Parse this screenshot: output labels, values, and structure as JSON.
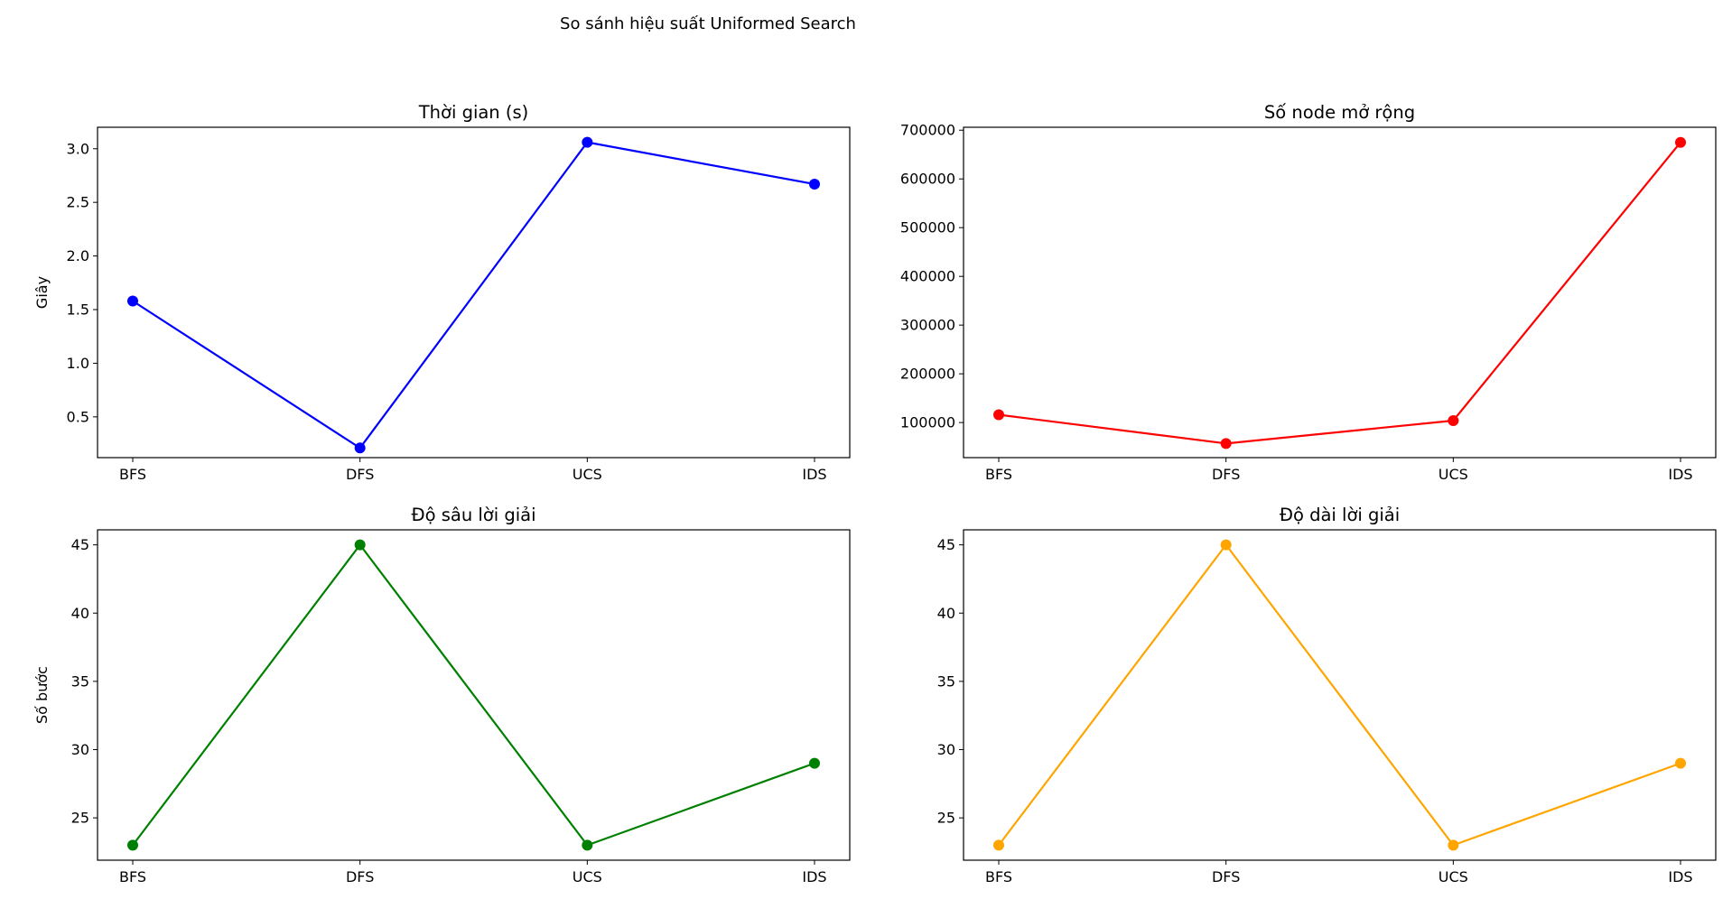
{
  "figure": {
    "suptitle": "So sánh hiệu suất Uniformed Search"
  },
  "chart_data": [
    {
      "type": "line",
      "title": "Thời gian (s)",
      "xlabel": "",
      "ylabel": "Giây",
      "categories": [
        "BFS",
        "DFS",
        "UCS",
        "IDS"
      ],
      "series": [
        {
          "values": [
            1.58,
            0.21,
            3.06,
            2.67
          ],
          "color": "#0000ff"
        }
      ],
      "ylim": [
        0.12,
        3.2
      ],
      "yticks": [
        0.5,
        1.0,
        1.5,
        2.0,
        2.5,
        3.0
      ],
      "ytick_labels": [
        "0.5",
        "1.0",
        "1.5",
        "2.0",
        "2.5",
        "3.0"
      ],
      "grid": false,
      "marker": "circle"
    },
    {
      "type": "line",
      "title": "Số node mở rộng",
      "xlabel": "",
      "ylabel": "",
      "categories": [
        "BFS",
        "DFS",
        "UCS",
        "IDS"
      ],
      "series": [
        {
          "values": [
            116000,
            57000,
            104000,
            675000
          ],
          "color": "#ff0000"
        }
      ],
      "ylim": [
        28000,
        706000
      ],
      "yticks": [
        100000,
        200000,
        300000,
        400000,
        500000,
        600000,
        700000
      ],
      "ytick_labels": [
        "100000",
        "200000",
        "300000",
        "400000",
        "500000",
        "600000",
        "700000"
      ],
      "grid": false,
      "marker": "circle"
    },
    {
      "type": "line",
      "title": "Độ sâu lời giải",
      "xlabel": "",
      "ylabel": "Số bước",
      "categories": [
        "BFS",
        "DFS",
        "UCS",
        "IDS"
      ],
      "series": [
        {
          "values": [
            23,
            45,
            23,
            29
          ],
          "color": "#008000"
        }
      ],
      "ylim": [
        21.9,
        46.1
      ],
      "yticks": [
        25,
        30,
        35,
        40,
        45
      ],
      "ytick_labels": [
        "25",
        "30",
        "35",
        "40",
        "45"
      ],
      "grid": false,
      "marker": "circle"
    },
    {
      "type": "line",
      "title": "Độ dài lời giải",
      "xlabel": "",
      "ylabel": "",
      "categories": [
        "BFS",
        "DFS",
        "UCS",
        "IDS"
      ],
      "series": [
        {
          "values": [
            23,
            45,
            23,
            29
          ],
          "color": "#ffa500"
        }
      ],
      "ylim": [
        21.9,
        46.1
      ],
      "yticks": [
        25,
        30,
        35,
        40,
        45
      ],
      "ytick_labels": [
        "25",
        "30",
        "35",
        "40",
        "45"
      ],
      "grid": false,
      "marker": "circle"
    }
  ]
}
